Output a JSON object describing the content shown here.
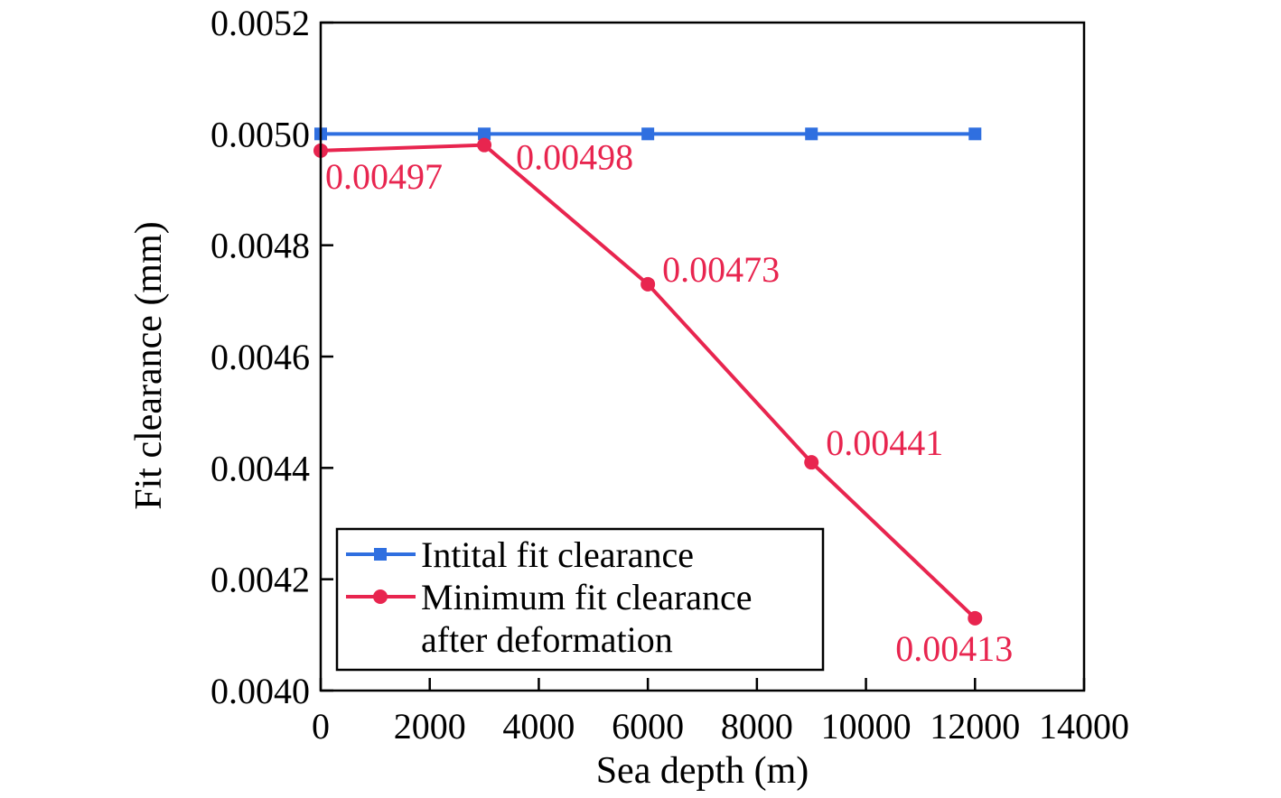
{
  "chart_data": {
    "type": "line",
    "title": "",
    "xlabel": "Sea depth (m)",
    "ylabel": "Fit clearance (mm)",
    "xlim": [
      0,
      14000
    ],
    "ylim": [
      0.004,
      0.0052
    ],
    "x_ticks": [
      "0",
      "2000",
      "4000",
      "6000",
      "8000",
      "10000",
      "12000",
      "14000"
    ],
    "y_ticks": [
      "0.0040",
      "0.0042",
      "0.0044",
      "0.0046",
      "0.0048",
      "0.0050",
      "0.0052"
    ],
    "grid": false,
    "legend_position": "bottom-left",
    "x": [
      0,
      3000,
      6000,
      9000,
      12000
    ],
    "series": [
      {
        "name": "Intital fit clearance",
        "name_lines": [
          "Intital fit clearance"
        ],
        "color": "#2f6fe0",
        "marker": "square",
        "values": [
          0.005,
          0.005,
          0.005,
          0.005,
          0.005
        ]
      },
      {
        "name": "Minimum fit clearance after deformation",
        "name_lines": [
          "Minimum fit clearance",
          "after deformation"
        ],
        "color": "#e8254f",
        "marker": "circle",
        "values": [
          0.00497,
          0.00498,
          0.00473,
          0.00441,
          0.00413
        ],
        "data_labels": [
          "0.00497",
          "0.00498",
          "0.00473",
          "0.00441",
          "0.00413"
        ]
      }
    ]
  }
}
